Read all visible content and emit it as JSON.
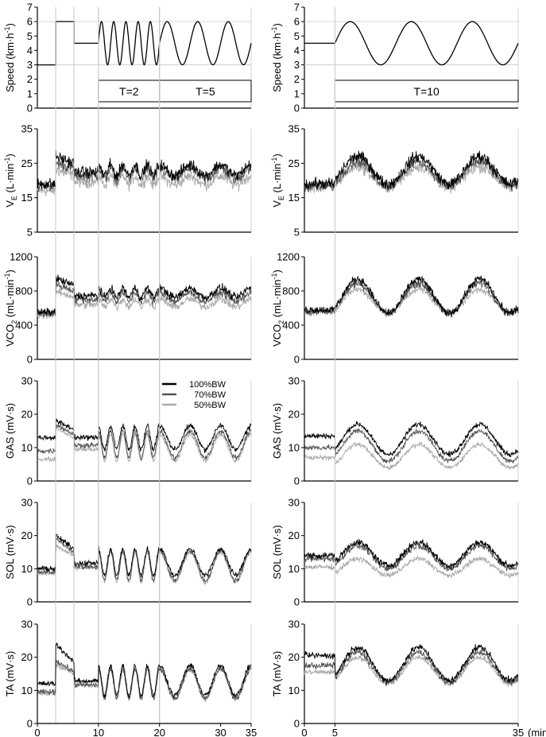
{
  "figure": {
    "x_unit_label": "(min)",
    "legend": [
      {
        "label": "100%BW",
        "color": "#000000"
      },
      {
        "label": "70%BW",
        "color": "#555555"
      },
      {
        "label": "50%BW",
        "color": "#aaaaaa"
      }
    ],
    "speed_ylabel": {
      "main": "Speed (km·h",
      "sup": "-1",
      "close": ")"
    },
    "ve_ylabel": {
      "pre": "V",
      "sub": "E",
      "mid": " (L·min",
      "sup": "-1",
      "close": ")"
    },
    "vco2_ylabel": {
      "pre": "VCO",
      "sub": "2",
      "mid": " (mL·min",
      "sup": "-1",
      "close": ")"
    }
  },
  "chart_data": [
    {
      "type": "line",
      "column": "left",
      "row": "speed",
      "ylabel": "Speed (km·h-1)",
      "ylim": [
        0,
        7
      ],
      "yticks": [
        "0",
        "1",
        "2",
        "3",
        "4",
        "5",
        "6",
        "7"
      ],
      "xlim": [
        0,
        35
      ],
      "series": [
        {
          "values_description_free": true,
          "segments": [
            {
              "kind": "const",
              "t": [
                0,
                3
              ],
              "v": 3
            },
            {
              "kind": "const",
              "t": [
                3,
                6
              ],
              "v": 6
            },
            {
              "kind": "const",
              "t": [
                6,
                10
              ],
              "v": 4.5
            },
            {
              "kind": "sine",
              "t": [
                10,
                20
              ],
              "mean": 4.5,
              "amp": 1.5,
              "period": 2
            },
            {
              "kind": "sine",
              "t": [
                20,
                35
              ],
              "mean": 4.5,
              "amp": 1.5,
              "period": 5
            }
          ]
        }
      ],
      "boxes": [
        {
          "label": "T=2",
          "t": [
            10,
            20
          ]
        },
        {
          "label": "T=5",
          "t": [
            20,
            35
          ]
        }
      ]
    },
    {
      "type": "line",
      "column": "right",
      "row": "speed",
      "ylabel": "Speed (km·h-1)",
      "ylim": [
        0,
        7
      ],
      "yticks": [
        "0",
        "1",
        "2",
        "3",
        "4",
        "5",
        "6",
        "7"
      ],
      "xlim": [
        0,
        35
      ],
      "series": [
        {
          "segments": [
            {
              "kind": "const",
              "t": [
                0,
                5
              ],
              "v": 4.5
            },
            {
              "kind": "sine",
              "t": [
                5,
                35
              ],
              "mean": 4.5,
              "amp": 1.5,
              "period": 10
            }
          ]
        }
      ],
      "boxes": [
        {
          "label": "T=10",
          "t": [
            5,
            35
          ]
        }
      ]
    },
    {
      "type": "line",
      "column": "left",
      "row": "ve",
      "ylabel": "VE (L·min-1)",
      "ylim": [
        5,
        35
      ],
      "yticks": [
        "5",
        "15",
        "25",
        "35"
      ],
      "tick_values": [
        5,
        15,
        25,
        35
      ],
      "series": [
        {
          "name": "100%BW",
          "base": 19,
          "step": 27,
          "level": 23,
          "amp": 3,
          "noise": 2.5
        },
        {
          "name": "70%BW",
          "base": 18.5,
          "step": 25,
          "level": 22,
          "amp": 3,
          "noise": 2.5
        },
        {
          "name": "50%BW",
          "base": 17,
          "step": 23,
          "level": 20,
          "amp": 2.5,
          "noise": 2.5
        }
      ]
    },
    {
      "type": "line",
      "column": "right",
      "row": "ve",
      "ylabel": "VE (L·min-1)",
      "ylim": [
        5,
        35
      ],
      "yticks": [
        "5",
        "15",
        "25",
        "35"
      ],
      "tick_values": [
        5,
        15,
        25,
        35
      ],
      "series": [
        {
          "name": "100%BW",
          "base": 19,
          "level": 23,
          "amp": 4,
          "noise": 2.5
        },
        {
          "name": "70%BW",
          "base": 18.5,
          "level": 22,
          "amp": 3.5,
          "noise": 2.5
        },
        {
          "name": "50%BW",
          "base": 18,
          "level": 21,
          "amp": 3,
          "noise": 2.5
        }
      ]
    },
    {
      "type": "line",
      "column": "left",
      "row": "vco2",
      "ylabel": "VCO2 (mL·min-1)",
      "ylim": [
        0,
        1200
      ],
      "yticks": [
        "0",
        "400",
        "800",
        "1200"
      ],
      "tick_values": [
        0,
        400,
        800,
        1200
      ],
      "series": [
        {
          "name": "100%BW",
          "base": 550,
          "step": 950,
          "level": 780,
          "amp": 110,
          "noise": 70
        },
        {
          "name": "70%BW",
          "base": 540,
          "step": 880,
          "level": 730,
          "amp": 100,
          "noise": 70
        },
        {
          "name": "50%BW",
          "base": 520,
          "step": 800,
          "level": 660,
          "amp": 90,
          "noise": 70
        }
      ]
    },
    {
      "type": "line",
      "column": "right",
      "row": "vco2",
      "ylabel": "VCO2 (mL·min-1)",
      "ylim": [
        0,
        1200
      ],
      "yticks": [
        "0",
        "400",
        "800",
        "1200"
      ],
      "tick_values": [
        0,
        400,
        800,
        1200
      ],
      "series": [
        {
          "name": "100%BW",
          "base": 580,
          "level": 740,
          "amp": 200,
          "noise": 70
        },
        {
          "name": "70%BW",
          "base": 570,
          "level": 720,
          "amp": 170,
          "noise": 70
        },
        {
          "name": "50%BW",
          "base": 560,
          "level": 680,
          "amp": 140,
          "noise": 60
        }
      ]
    },
    {
      "type": "line",
      "column": "left",
      "row": "gas",
      "ylabel": "GAS (mV·s)",
      "ylim": [
        0,
        30
      ],
      "yticks": [
        "0",
        "10",
        "20",
        "30"
      ],
      "tick_values": [
        0,
        10,
        20,
        30
      ],
      "series": [
        {
          "name": "100%BW",
          "base": 13,
          "step": 18,
          "level": 13,
          "amp": 3.5,
          "noise": 1.2
        },
        {
          "name": "70%BW",
          "base": 9,
          "step": 17,
          "level": 11,
          "amp": 4,
          "noise": 1.2
        },
        {
          "name": "50%BW",
          "base": 6.5,
          "step": 16,
          "level": 10,
          "amp": 4,
          "noise": 1
        }
      ]
    },
    {
      "type": "line",
      "column": "right",
      "row": "gas",
      "ylabel": "GAS (mV·s)",
      "ylim": [
        0,
        30
      ],
      "yticks": [
        "0",
        "10",
        "20",
        "30"
      ],
      "tick_values": [
        0,
        10,
        20,
        30
      ],
      "series": [
        {
          "name": "100%BW",
          "base": 13.5,
          "level": 12.5,
          "amp": 4.5,
          "noise": 1.2
        },
        {
          "name": "70%BW",
          "base": 10,
          "level": 10.5,
          "amp": 4.5,
          "noise": 1.2
        },
        {
          "name": "50%BW",
          "base": 7,
          "level": 7.5,
          "amp": 3.5,
          "noise": 1
        }
      ]
    },
    {
      "type": "line",
      "column": "left",
      "row": "sol",
      "ylabel": "SOL (mV·s)",
      "ylim": [
        0,
        30
      ],
      "yticks": [
        "0",
        "10",
        "20",
        "30"
      ],
      "tick_values": [
        0,
        10,
        20,
        30
      ],
      "series": [
        {
          "name": "100%BW",
          "base": 10,
          "step": 20,
          "level": 12,
          "amp": 4,
          "noise": 1.2
        },
        {
          "name": "70%BW",
          "base": 9,
          "step": 19,
          "level": 11,
          "amp": 4.5,
          "noise": 1.2
        },
        {
          "name": "50%BW",
          "base": 8.5,
          "step": 17,
          "level": 10.5,
          "amp": 4.5,
          "noise": 1
        }
      ]
    },
    {
      "type": "line",
      "column": "right",
      "row": "sol",
      "ylabel": "SOL (mV·s)",
      "ylim": [
        0,
        30
      ],
      "yticks": [
        "0",
        "10",
        "20",
        "30"
      ],
      "tick_values": [
        0,
        10,
        20,
        30
      ],
      "series": [
        {
          "name": "100%BW",
          "base": 14,
          "level": 14.5,
          "amp": 3.5,
          "noise": 1.5
        },
        {
          "name": "70%BW",
          "base": 13,
          "level": 13.5,
          "amp": 3.5,
          "noise": 1.5
        },
        {
          "name": "50%BW",
          "base": 10.5,
          "level": 10.5,
          "amp": 2.5,
          "noise": 1.2
        }
      ]
    },
    {
      "type": "line",
      "column": "left",
      "row": "ta",
      "ylabel": "TA (mV·s)",
      "ylim": [
        0,
        30
      ],
      "yticks": [
        "0",
        "10",
        "20",
        "30"
      ],
      "tick_values": [
        0,
        10,
        20,
        30
      ],
      "series": [
        {
          "name": "100%BW",
          "base": 12,
          "step": 24,
          "level": 13,
          "amp": 4.5,
          "noise": 1.2
        },
        {
          "name": "70%BW",
          "base": 9.5,
          "step": 19,
          "level": 12,
          "amp": 4.5,
          "noise": 1.2
        },
        {
          "name": "50%BW",
          "base": 9,
          "step": 18,
          "level": 12,
          "amp": 4.5,
          "noise": 1.2
        }
      ]
    },
    {
      "type": "line",
      "column": "right",
      "row": "ta",
      "ylabel": "TA (mV·s)",
      "ylim": [
        0,
        30
      ],
      "yticks": [
        "0",
        "10",
        "20",
        "30"
      ],
      "tick_values": [
        0,
        10,
        20,
        30
      ],
      "series": [
        {
          "name": "100%BW",
          "base": 20.5,
          "level": 18,
          "amp": 5,
          "noise": 1.5
        },
        {
          "name": "70%BW",
          "base": 17.5,
          "level": 17,
          "amp": 4.5,
          "noise": 1.5
        },
        {
          "name": "50%BW",
          "base": 15.5,
          "level": 16,
          "amp": 4,
          "noise": 1.2
        }
      ]
    }
  ],
  "x_axes": {
    "left": {
      "ticks": [
        "0",
        "10",
        "20",
        "30",
        "35"
      ],
      "tick_values": [
        0,
        10,
        20,
        30,
        35
      ],
      "xlim": [
        0,
        35
      ]
    },
    "right": {
      "ticks": [
        "0",
        "5",
        "35"
      ],
      "tick_values": [
        0,
        5,
        35
      ],
      "xlim": [
        0,
        35
      ]
    }
  }
}
